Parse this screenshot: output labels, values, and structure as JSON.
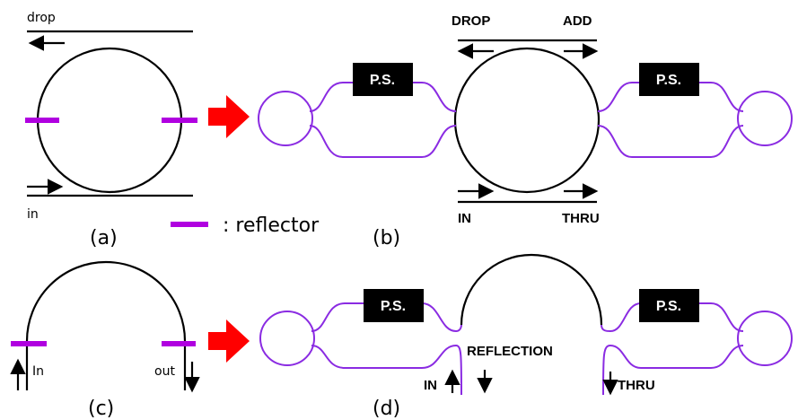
{
  "legend": {
    "label": ": reflector"
  },
  "panel_a": {
    "label": "(a)",
    "drop": "drop",
    "in": "in"
  },
  "panel_b": {
    "label": "(b)",
    "drop": "DROP",
    "add": "ADD",
    "in": "IN",
    "thru": "THRU",
    "phase_shifters": [
      "P.S.",
      "P.S."
    ]
  },
  "panel_c": {
    "label": "(c)",
    "in": "In",
    "out": "out"
  },
  "panel_d": {
    "label": "(d)",
    "reflection": "REFLECTION",
    "in": "IN",
    "thru": "THRU",
    "phase_shifters": [
      "P.S.",
      "P.S."
    ]
  }
}
